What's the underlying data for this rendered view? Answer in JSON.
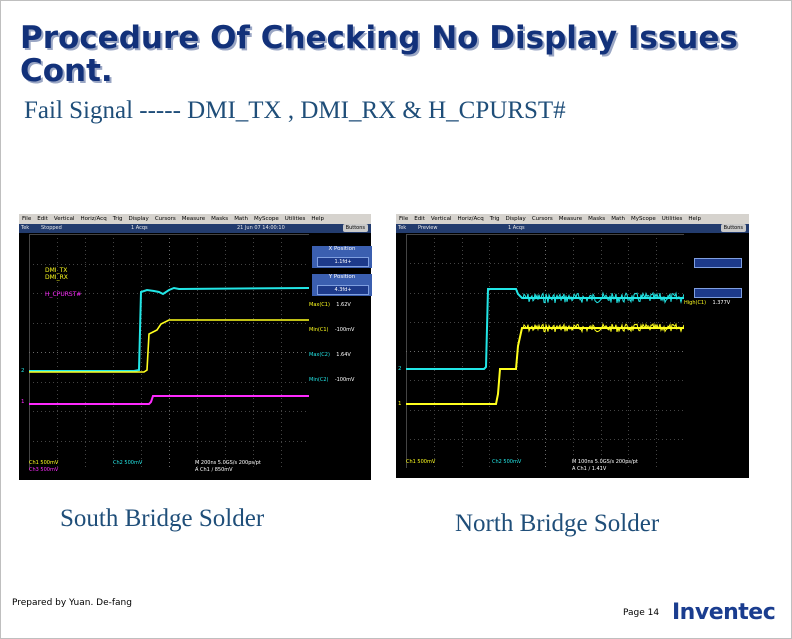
{
  "slide": {
    "title": "Procedure Of Checking No Display Issues Cont.",
    "subtitle": "Fail Signal ----- DMI_TX , DMI_RX & H_CPURST#",
    "prepared_by": "Prepared by Yuan. De-fang",
    "page": "Page 14",
    "logo": "Inventec"
  },
  "captions": {
    "left": "South Bridge Solder",
    "right": "North Bridge Solder"
  },
  "menu_left": [
    "File",
    "Edit",
    "Vertical",
    "Horiz/Acq",
    "Trig",
    "Display",
    "Cursors",
    "Measure",
    "Masks",
    "Math",
    "MyScope",
    "Utilities",
    "Help"
  ],
  "menu_right": [
    "File",
    "Edit",
    "Vertical",
    "Horiz/Acq",
    "Trig",
    "Display",
    "Cursors",
    "Measure",
    "Masks",
    "Math",
    "MyScope",
    "Utilities",
    "Help"
  ],
  "scope_left": {
    "brand": "Tek",
    "state": "Stopped",
    "acqs": "1 Acqs",
    "date": "21 Jun 07 14:00:10",
    "buttons": "Buttons",
    "x_position_label": "X Position",
    "x_position_value": "1.1fd+",
    "y_position_label": "Y Position",
    "y_position_value": "4.3fd+",
    "legend": [
      "DMI_TX",
      "DMI_RX",
      "H_CPURST#"
    ],
    "markers": [
      "2",
      "3",
      "1"
    ],
    "readouts": [
      {
        "label": "Max(C1)",
        "value": "1.62V"
      },
      {
        "label": "Min(C1)",
        "value": "-100mV"
      },
      {
        "label": "Max(C2)",
        "value": "1.64V"
      },
      {
        "label": "Min(C2)",
        "value": "-100mV"
      }
    ],
    "bottom_left": [
      "Ch1   500mV",
      "Ch3   500mV"
    ],
    "bottom_ch2": "Ch2   500mV",
    "bottom_timebase": "M 200ns 5.0GS/s      200ps/pt",
    "bottom_trigger": "A Ch1 ∕ 850mV"
  },
  "scope_right": {
    "brand": "Tek",
    "state": "Preview",
    "acqs": "1 Acqs",
    "buttons": "Buttons",
    "markers": [
      "2",
      "1"
    ],
    "readouts": [
      {
        "label": "High(C1)",
        "value": "1.377V"
      }
    ],
    "bottom_ch1": "Ch1   500mV",
    "bottom_ch2": "Ch2   500mV",
    "bottom_timebase": "M 100ns 5.0GS/s      200ps/pt",
    "bottom_trigger": "A Ch1 ∕ 1.41V"
  },
  "colors": {
    "cyan": "#22e6e6",
    "yellow": "#ffff1e",
    "magenta": "#ff2aff",
    "title": "#12317a"
  }
}
